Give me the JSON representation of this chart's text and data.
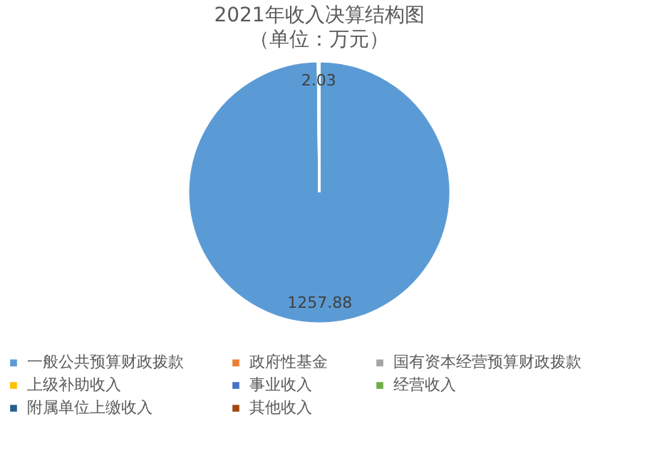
{
  "chart_data": {
    "type": "pie",
    "title": "2021年收入决算结构图",
    "subtitle": "（单位：万元）",
    "categories": [
      "一般公共预算财政拨款",
      "政府性基金",
      "国有资本经营预算财政拨款",
      "上级补助收入",
      "事业收入",
      "经营收入",
      "附属单位上缴收入",
      "其他收入"
    ],
    "values": [
      1257.88,
      0,
      0,
      2.03,
      0,
      0,
      0,
      0
    ],
    "value_labels": [
      "1257.88",
      null,
      null,
      "2.03",
      null,
      null,
      null,
      null
    ],
    "colors": [
      "#5b9bd5",
      "#ed7d31",
      "#a5a5a5",
      "#ffc000",
      "#4472c4",
      "#70ad47",
      "#255e91",
      "#9e480e"
    ],
    "legend": "bottom"
  }
}
